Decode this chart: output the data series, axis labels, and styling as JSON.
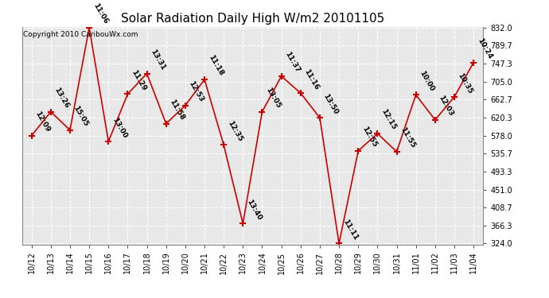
{
  "title": "Solar Radiation Daily High W/m2 20101105",
  "copyright": "Copyright 2010 CaribouWx.com",
  "x_labels": [
    "10/12",
    "10/13",
    "10/14",
    "10/15",
    "10/16",
    "10/17",
    "10/18",
    "10/19",
    "10/20",
    "10/21",
    "10/22",
    "10/23",
    "10/24",
    "10/25",
    "10/26",
    "10/27",
    "10/28",
    "10/29",
    "10/30",
    "10/31",
    "11/01",
    "11/02",
    "11/03",
    "11/04"
  ],
  "y_values": [
    578.0,
    634.0,
    591.0,
    832.0,
    564.0,
    676.0,
    724.0,
    606.0,
    649.0,
    710.0,
    556.0,
    371.0,
    634.0,
    718.0,
    678.0,
    620.0,
    324.0,
    542.0,
    583.0,
    540.0,
    674.0,
    615.0,
    669.0,
    750.0
  ],
  "point_labels": [
    "12:09",
    "13:26",
    "15:05",
    "11:06",
    "13:00",
    "11:29",
    "13:31",
    "11:58",
    "12:53",
    "11:18",
    "12:35",
    "13:40",
    "13:05",
    "11:37",
    "11:16",
    "13:50",
    "11:11",
    "12:55",
    "12:15",
    "11:55",
    "10:00",
    "12:03",
    "10:35",
    "10:24"
  ],
  "y_min": 324.0,
  "y_max": 832.0,
  "y_ticks": [
    324.0,
    366.3,
    408.7,
    451.0,
    493.3,
    535.7,
    578.0,
    620.3,
    662.7,
    705.0,
    747.3,
    789.7,
    832.0
  ],
  "line_color": "#cc0000",
  "marker_color": "#cc0000",
  "bg_color": "#ffffff",
  "plot_bg_color": "#e8e8e8",
  "grid_color": "#ffffff",
  "title_fontsize": 11,
  "label_fontsize": 7,
  "point_label_fontsize": 6.5,
  "copyright_fontsize": 6.5
}
